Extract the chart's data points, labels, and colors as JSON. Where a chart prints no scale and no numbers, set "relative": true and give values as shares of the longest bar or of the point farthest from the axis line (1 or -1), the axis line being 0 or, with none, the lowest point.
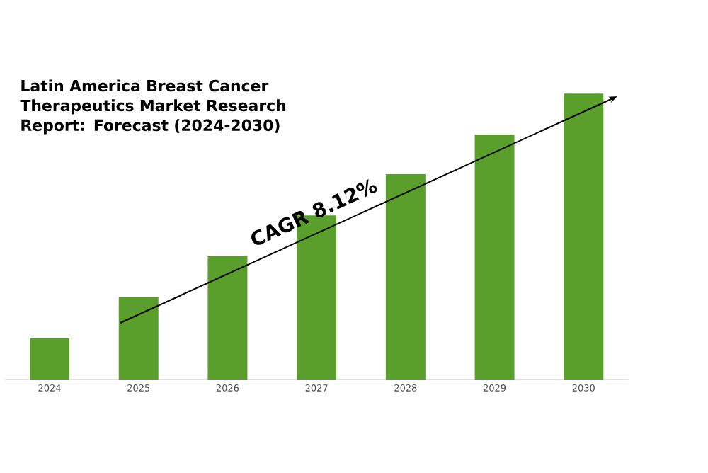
{
  "chart_data": {
    "type": "bar",
    "title": "Latin America Breast Cancer Therapeutics Market Research Report: Forecast (2024-2030)",
    "categories": [
      "2024",
      "2025",
      "2026",
      "2027",
      "2028",
      "2029",
      "2030"
    ],
    "values": [
      0.144,
      0.287,
      0.431,
      0.574,
      0.718,
      0.856,
      1
    ],
    "relative": true,
    "color": "#5a9e2c",
    "annotations": [
      "CAGR 8.12%"
    ]
  }
}
